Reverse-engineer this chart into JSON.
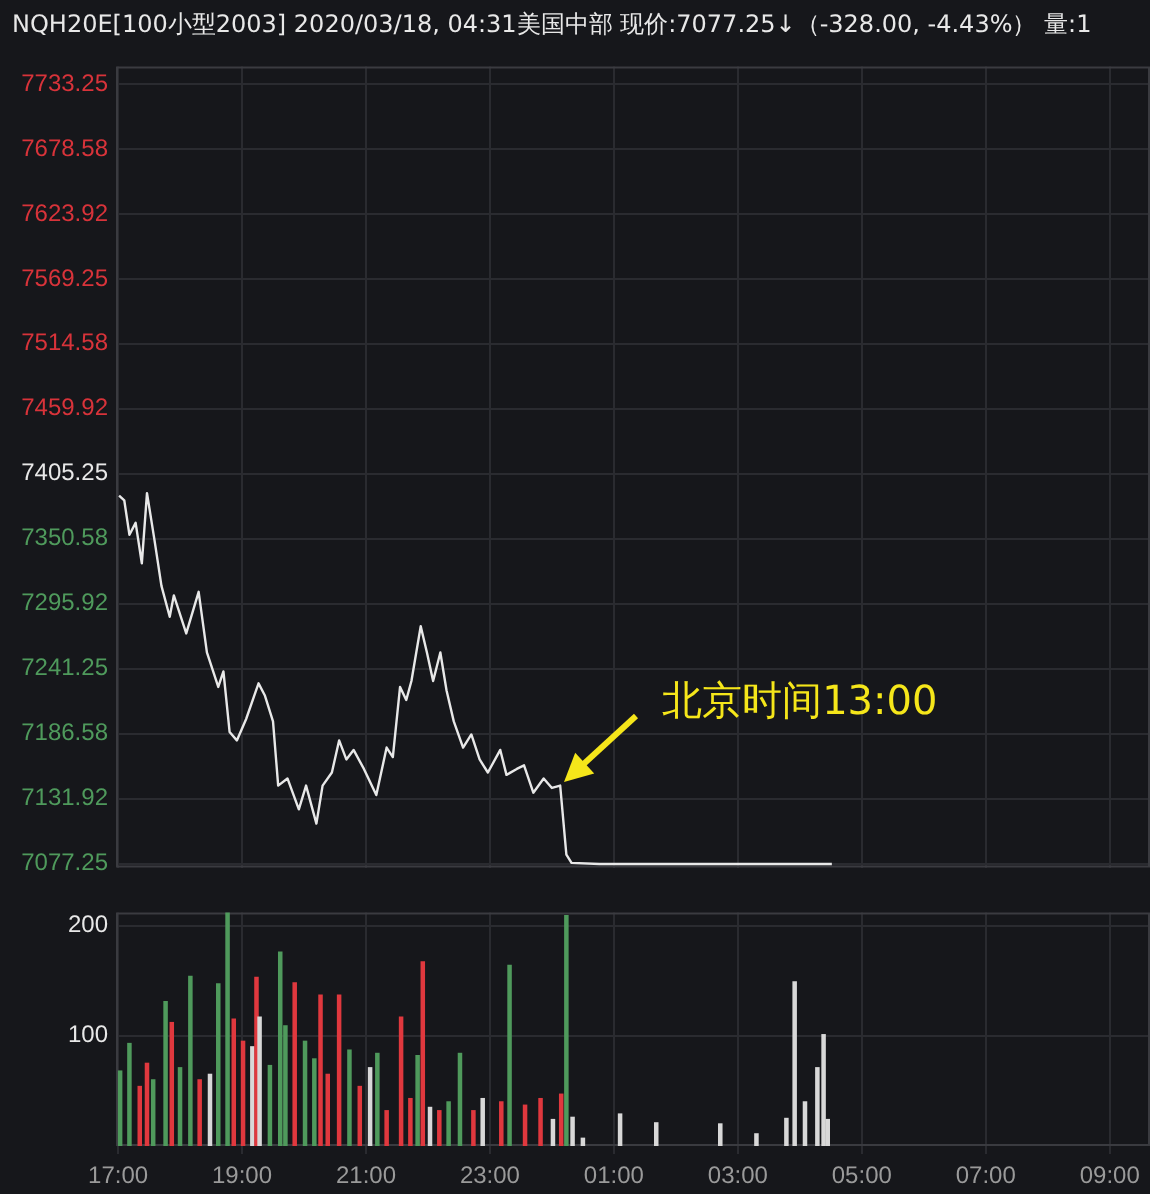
{
  "chart_data": [
    {
      "type": "line",
      "title": "NQH20E[100小型2003]  2020/03/18, 04:31美国中部  现价:7077.25↓（-328.00, -4.43%）  量:1",
      "xlim": [
        "2020-03-17T16:58",
        "2020-03-18T09:39"
      ],
      "xticks": [
        {
          "value": "2020-03-17T17:00",
          "label": null
        },
        {
          "value": "2020-03-17T19:00",
          "label": null
        },
        {
          "value": "2020-03-17T21:00",
          "label": null
        },
        {
          "value": "2020-03-17T23:00",
          "label": null
        },
        {
          "value": "2020-03-18T01:00",
          "label": null
        },
        {
          "value": "2020-03-18T03:00",
          "label": null
        },
        {
          "value": "2020-03-18T05:00",
          "label": null
        },
        {
          "value": "2020-03-18T07:00",
          "label": null
        },
        {
          "value": "2020-03-18T09:00",
          "label": null
        }
      ],
      "ylim": [
        7074,
        7748
      ],
      "yticks": [
        7077.25,
        7131.92,
        7186.58,
        7241.25,
        7295.92,
        7350.58,
        7405.25,
        7459.92,
        7514.58,
        7569.25,
        7623.92,
        7678.58,
        7733.25
      ],
      "grid": true,
      "tick_labels": "y",
      "annotations": [
        {
          "text": "北京时间13:00",
          "x": "2020-03-18T00:08",
          "y": 7143
        }
      ],
      "series": [
        {
          "color": "#e8e8e8",
          "x": [
            "2020-03-17T17:01",
            "2020-03-17T17:06",
            "2020-03-17T17:11",
            "2020-03-17T17:17",
            "2020-03-17T17:23",
            "2020-03-17T17:28",
            "2020-03-17T17:35",
            "2020-03-17T17:42",
            "2020-03-17T17:50",
            "2020-03-17T17:54",
            "2020-03-17T18:06",
            "2020-03-17T18:18",
            "2020-03-17T18:26",
            "2020-03-17T18:37",
            "2020-03-17T18:42",
            "2020-03-17T18:48",
            "2020-03-17T18:55",
            "2020-03-17T19:04",
            "2020-03-17T19:16",
            "2020-03-17T19:22",
            "2020-03-17T19:30",
            "2020-03-17T19:35",
            "2020-03-17T19:44",
            "2020-03-17T19:55",
            "2020-03-17T20:02",
            "2020-03-17T20:12",
            "2020-03-17T20:18",
            "2020-03-17T20:27",
            "2020-03-17T20:34",
            "2020-03-17T20:41",
            "2020-03-17T20:48",
            "2020-03-17T20:58",
            "2020-03-17T21:10",
            "2020-03-17T21:20",
            "2020-03-17T21:26",
            "2020-03-17T21:33",
            "2020-03-17T21:39",
            "2020-03-17T21:44",
            "2020-03-17T21:53",
            "2020-03-17T21:59",
            "2020-03-17T22:05",
            "2020-03-17T22:12",
            "2020-03-17T22:18",
            "2020-03-17T22:25",
            "2020-03-17T22:34",
            "2020-03-17T22:42",
            "2020-03-17T22:50",
            "2020-03-17T22:58",
            "2020-03-17T23:10",
            "2020-03-17T23:16",
            "2020-03-17T23:26",
            "2020-03-17T23:33",
            "2020-03-17T23:42",
            "2020-03-17T23:52",
            "2020-03-18T00:00",
            "2020-03-18T00:08",
            "2020-03-18T00:14",
            "2020-03-18T00:19",
            "2020-03-18T00:46",
            "2020-03-18T04:31"
          ],
          "values": [
            7387,
            7383,
            7354,
            7364,
            7330,
            7389,
            7351,
            7311,
            7285,
            7303,
            7271,
            7306,
            7255,
            7226,
            7239,
            7188,
            7181,
            7199,
            7229,
            7219,
            7197,
            7143,
            7149,
            7123,
            7143,
            7111,
            7143,
            7154,
            7181,
            7165,
            7173,
            7157,
            7135,
            7175,
            7167,
            7226,
            7215,
            7231,
            7277,
            7255,
            7231,
            7255,
            7223,
            7197,
            7175,
            7186,
            7165,
            7154,
            7173,
            7152,
            7157,
            7160,
            7137,
            7149,
            7141,
            7143,
            7085,
            7078,
            7077,
            7077
          ]
        }
      ]
    },
    {
      "type": "bar",
      "xlim": [
        "2020-03-17T16:58",
        "2020-03-18T09:39"
      ],
      "xticks": [
        {
          "value": "2020-03-17T17:00",
          "label": "17:00"
        },
        {
          "value": "2020-03-17T19:00",
          "label": "19:00"
        },
        {
          "value": "2020-03-17T21:00",
          "label": "21:00"
        },
        {
          "value": "2020-03-17T23:00",
          "label": "23:00"
        },
        {
          "value": "2020-03-18T01:00",
          "label": "01:00"
        },
        {
          "value": "2020-03-18T03:00",
          "label": "03:00"
        },
        {
          "value": "2020-03-18T05:00",
          "label": "05:00"
        },
        {
          "value": "2020-03-18T07:00",
          "label": "07:00"
        },
        {
          "value": "2020-03-18T09:00",
          "label": "09:00"
        }
      ],
      "ylim": [
        0,
        212
      ],
      "yticks": [
        100,
        200
      ],
      "grid": true,
      "series": [
        {
          "x": [
            "2020-03-17T17:02",
            "2020-03-17T17:11",
            "2020-03-17T17:21",
            "2020-03-17T17:28",
            "2020-03-17T17:34",
            "2020-03-17T17:46",
            "2020-03-17T17:52",
            "2020-03-17T18:00",
            "2020-03-17T18:10",
            "2020-03-17T18:19",
            "2020-03-17T18:29",
            "2020-03-17T18:37",
            "2020-03-17T18:46",
            "2020-03-17T18:52",
            "2020-03-17T19:01",
            "2020-03-17T19:10",
            "2020-03-17T19:14",
            "2020-03-17T19:17",
            "2020-03-17T19:27",
            "2020-03-17T19:37",
            "2020-03-17T19:42",
            "2020-03-17T19:51",
            "2020-03-17T20:01",
            "2020-03-17T20:10",
            "2020-03-17T20:16",
            "2020-03-17T20:23",
            "2020-03-17T20:34",
            "2020-03-17T20:44",
            "2020-03-17T20:54",
            "2020-03-17T21:04",
            "2020-03-17T21:11",
            "2020-03-17T21:20",
            "2020-03-17T21:34",
            "2020-03-17T21:43",
            "2020-03-17T21:50",
            "2020-03-17T21:55",
            "2020-03-17T22:02",
            "2020-03-17T22:11",
            "2020-03-17T22:20",
            "2020-03-17T22:31",
            "2020-03-17T22:44",
            "2020-03-17T22:53",
            "2020-03-17T23:11",
            "2020-03-17T23:19",
            "2020-03-17T23:34",
            "2020-03-17T23:49",
            "2020-03-18T00:01",
            "2020-03-18T00:09",
            "2020-03-18T00:14",
            "2020-03-18T00:20",
            "2020-03-18T00:30",
            "2020-03-18T01:06",
            "2020-03-18T01:41",
            "2020-03-18T02:43",
            "2020-03-18T03:18",
            "2020-03-18T03:47",
            "2020-03-18T03:55",
            "2020-03-18T04:05",
            "2020-03-18T04:17",
            "2020-03-18T04:23",
            "2020-03-18T04:27"
          ],
          "values": [
            68,
            93,
            54,
            75,
            60,
            131,
            112,
            71,
            154,
            60,
            65,
            147,
            212,
            115,
            95,
            90,
            153,
            117,
            73,
            176,
            109,
            148,
            95,
            79,
            137,
            65,
            137,
            87,
            54,
            71,
            84,
            32,
            117,
            43,
            82,
            167,
            35,
            32,
            40,
            84,
            32,
            43,
            40,
            164,
            37,
            43,
            24,
            47,
            209,
            26,
            7,
            29,
            21,
            20,
            11,
            25,
            149,
            40,
            71,
            101,
            24
          ],
          "colors": [
            "#4f9a5c",
            "#4f9a5c",
            "#e0383e",
            "#e0383e",
            "#4f9a5c",
            "#4f9a5c",
            "#e0383e",
            "#4f9a5c",
            "#4f9a5c",
            "#e0383e",
            "#d8d8d8",
            "#4f9a5c",
            "#4f9a5c",
            "#e0383e",
            "#e0383e",
            "#d8d8d8",
            "#e0383e",
            "#d8d8d8",
            "#4f9a5c",
            "#4f9a5c",
            "#4f9a5c",
            "#e0383e",
            "#4f9a5c",
            "#4f9a5c",
            "#e0383e",
            "#e0383e",
            "#e0383e",
            "#4f9a5c",
            "#e0383e",
            "#d8d8d8",
            "#4f9a5c",
            "#e0383e",
            "#e0383e",
            "#e0383e",
            "#4f9a5c",
            "#e0383e",
            "#d8d8d8",
            "#e0383e",
            "#4f9a5c",
            "#4f9a5c",
            "#e0383e",
            "#d8d8d8",
            "#e0383e",
            "#4f9a5c",
            "#e0383e",
            "#e0383e",
            "#d8d8d8",
            "#e0383e",
            "#4f9a5c",
            "#d8d8d8",
            "#d8d8d8",
            "#d8d8d8",
            "#d8d8d8",
            "#d8d8d8",
            "#d8d8d8",
            "#d8d8d8",
            "#d8d8d8",
            "#d8d8d8",
            "#d8d8d8",
            "#d8d8d8",
            "#d8d8d8"
          ]
        }
      ]
    }
  ]
}
